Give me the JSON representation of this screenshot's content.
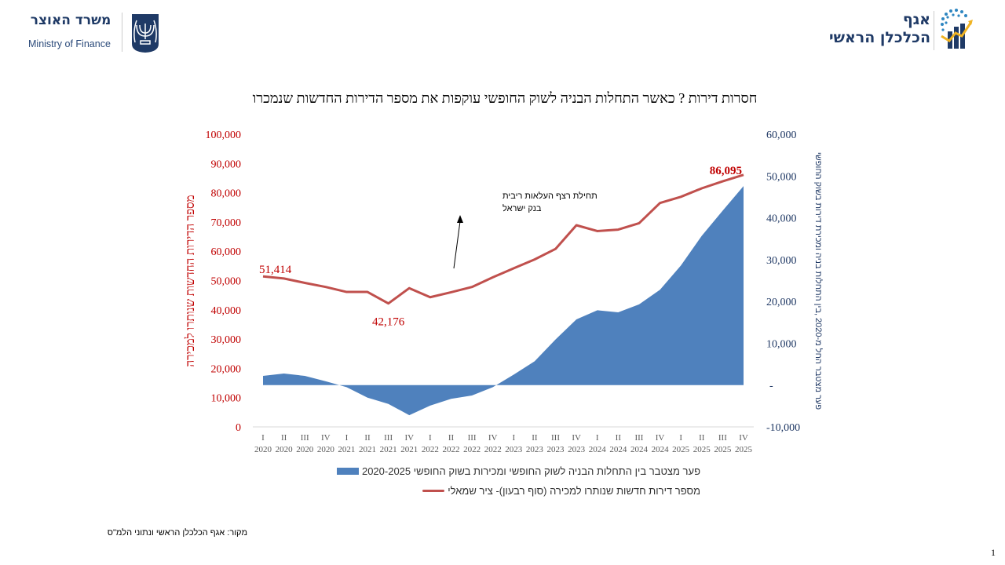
{
  "header": {
    "ministry_logo": {
      "hebrew": "משרד האוצר",
      "english": "Ministry of Finance"
    },
    "chief_economist_logo": {
      "line1": "אגף",
      "line2": "הכלכלן הראשי"
    }
  },
  "footer": {
    "source": "מקור: אגף הכלכלן הראשי ונתוני הלמ\"ס",
    "page_number": "1"
  },
  "colors": {
    "line": "#c0504d",
    "area": "#4f81bd",
    "left_axis": "#c00000",
    "right_axis": "#1f3864"
  },
  "chart_data": {
    "type": "line+area",
    "title": "חסרות דירות ? כאשר התחלות הבניה לשוק החופשי עוקפות את מספר הדירות החדשות שנמכרו",
    "categories": [
      [
        "I",
        "2020"
      ],
      [
        "II",
        "2020"
      ],
      [
        "III",
        "2020"
      ],
      [
        "IV",
        "2020"
      ],
      [
        "I",
        "2021"
      ],
      [
        "II",
        "2021"
      ],
      [
        "III",
        "2021"
      ],
      [
        "IV",
        "2021"
      ],
      [
        "I",
        "2022"
      ],
      [
        "II",
        "2022"
      ],
      [
        "III",
        "2022"
      ],
      [
        "IV",
        "2022"
      ],
      [
        "I",
        "2023"
      ],
      [
        "II",
        "2023"
      ],
      [
        "III",
        "2023"
      ],
      [
        "IV",
        "2023"
      ],
      [
        "I",
        "2024"
      ],
      [
        "II",
        "2024"
      ],
      [
        "III",
        "2024"
      ],
      [
        "IV",
        "2024"
      ],
      [
        "I",
        "2025"
      ],
      [
        "II",
        "2025"
      ],
      [
        "III",
        "2025"
      ],
      [
        "IV",
        "2025"
      ]
    ],
    "left_axis": {
      "label": "מספר הדירות החדשות שנותרו למכירה",
      "range": [
        0,
        100000
      ],
      "ticks": [
        "0",
        "10,000",
        "20,000",
        "30,000",
        "40,000",
        "50,000",
        "60,000",
        "70,000",
        "80,000",
        "90,000",
        "100,000"
      ]
    },
    "right_axis": {
      "label": "פער מצטבר החל מ-2020 ,בין התחלות בניה ומכירת דירות בשוק החופשי",
      "range": [
        -10000,
        60000
      ],
      "ticks": [
        "-10,000",
        "-",
        "10,000",
        "20,000",
        "30,000",
        "40,000",
        "50,000",
        "60,000"
      ]
    },
    "series": [
      {
        "name": "פער מצטבר בין התחלות הבניה לשוק החופשי  ומכירות בשוק החופשי 2020-2025",
        "type": "area",
        "axis": "right",
        "values": [
          2200,
          2750,
          2200,
          900,
          -500,
          -3000,
          -4500,
          -7200,
          -4900,
          -3300,
          -2500,
          -500,
          2500,
          5700,
          10900,
          15700,
          17900,
          17400,
          19300,
          22800,
          28600,
          35700,
          41700,
          47600
        ]
      },
      {
        "name": "מספר דירות חדשות שנותרו למכירה (סוף רבעון)- ציר שמאלי",
        "type": "line",
        "axis": "left",
        "values": [
          51414,
          50700,
          49200,
          47800,
          46100,
          46100,
          42176,
          47400,
          44300,
          46000,
          47800,
          51100,
          54200,
          57200,
          60800,
          68900,
          66900,
          67400,
          69600,
          76500,
          78600,
          81500,
          83900,
          86095
        ]
      }
    ],
    "data_labels": [
      {
        "series": 1,
        "index": 0,
        "text": "51,414"
      },
      {
        "series": 1,
        "index": 6,
        "text": "42,176"
      },
      {
        "series": 1,
        "index": 23,
        "text": "86,095"
      }
    ],
    "annotation": {
      "lines": [
        "תחילת רצף העלאות ריבית",
        "בנק ישראל"
      ],
      "arrow": true
    },
    "legend_position": "bottom",
    "grid": false
  }
}
